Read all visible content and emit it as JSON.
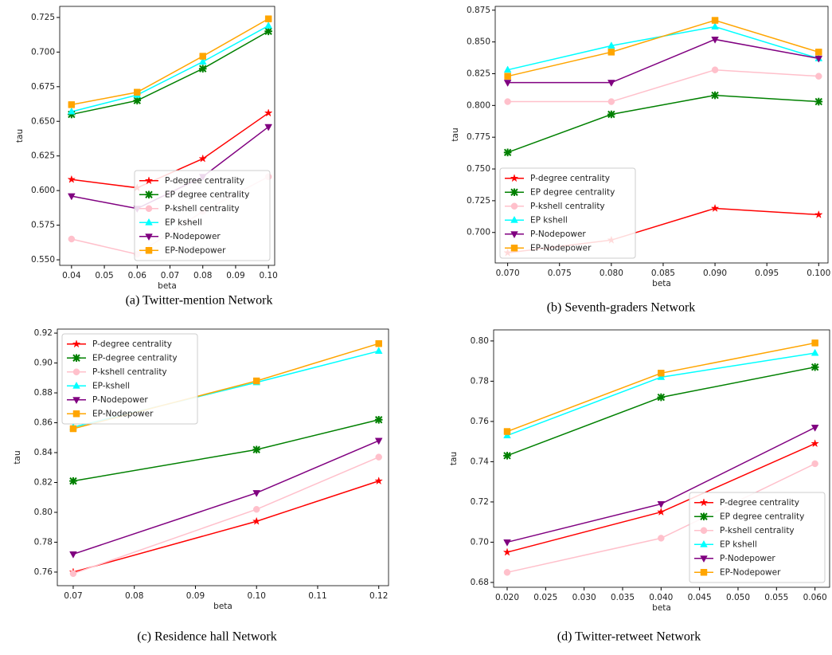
{
  "chart_data": [
    {
      "type": "line",
      "caption": "(a) Twitter-mention Network",
      "xlabel": "beta",
      "ylabel": "tau",
      "x": [
        0.04,
        0.06,
        0.08,
        0.1
      ],
      "xlim": [
        0.0364,
        0.1019
      ],
      "ylim": [
        0.546,
        0.733
      ],
      "xticks": [
        0.04,
        0.05,
        0.06,
        0.07,
        0.08,
        0.09,
        {
          "value": 0.1,
          "label": "0.10"
        }
      ],
      "yticks": [
        {
          "value": 0.55,
          "label": "0.550"
        },
        0.575,
        {
          "value": 0.6,
          "label": "0.600"
        },
        0.625,
        {
          "value": 0.65,
          "label": "0.650"
        },
        0.675,
        {
          "value": 0.7,
          "label": "0.700"
        },
        0.725
      ],
      "legend": "lower right",
      "series": [
        {
          "name": "P-degree centrality",
          "color": "#ff0000",
          "marker": "star",
          "values": [
            0.608,
            0.602,
            0.623,
            0.656
          ]
        },
        {
          "name": "EP degree centrality",
          "color": "#008000",
          "marker": "x",
          "values": [
            0.655,
            0.665,
            0.688,
            0.715
          ]
        },
        {
          "name": "P-kshell centrality",
          "color": "#ffc0cb",
          "marker": "circle",
          "values": [
            0.565,
            0.554,
            0.585,
            0.61
          ]
        },
        {
          "name": "EP kshell",
          "color": "#00ffff",
          "marker": "triangle-up",
          "values": [
            0.657,
            0.669,
            0.693,
            0.719
          ]
        },
        {
          "name": "P-Nodepower",
          "color": "#800080",
          "marker": "triangle-down",
          "values": [
            0.596,
            0.587,
            0.61,
            0.646
          ]
        },
        {
          "name": "EP-Nodepower",
          "color": "#ffa500",
          "marker": "square",
          "values": [
            0.662,
            0.671,
            0.697,
            0.724
          ]
        }
      ]
    },
    {
      "type": "line",
      "caption": "(b) Seventh-graders Network",
      "xlabel": "beta",
      "ylabel": "tau",
      "x": [
        0.07,
        0.08,
        0.09,
        0.1
      ],
      "xlim": [
        0.0688,
        0.1009
      ],
      "ylim": [
        0.676,
        0.878
      ],
      "xticks": [
        {
          "value": 0.07,
          "label": "0.070"
        },
        0.075,
        {
          "value": 0.08,
          "label": "0.080"
        },
        0.085,
        {
          "value": 0.09,
          "label": "0.090"
        },
        0.095,
        {
          "value": 0.1,
          "label": "0.100"
        }
      ],
      "yticks": [
        {
          "value": 0.7,
          "label": "0.700"
        },
        0.725,
        {
          "value": 0.75,
          "label": "0.750"
        },
        0.775,
        {
          "value": 0.8,
          "label": "0.800"
        },
        0.825,
        {
          "value": 0.85,
          "label": "0.850"
        },
        0.875
      ],
      "legend": "lower left",
      "series": [
        {
          "name": "P-degree centrality",
          "color": "#ff0000",
          "marker": "star",
          "values": [
            0.684,
            0.694,
            0.719,
            0.714
          ]
        },
        {
          "name": "EP degree centrality",
          "color": "#008000",
          "marker": "x",
          "values": [
            0.763,
            0.793,
            0.808,
            0.803
          ]
        },
        {
          "name": "P-kshell centrality",
          "color": "#ffc0cb",
          "marker": "circle",
          "values": [
            0.803,
            0.803,
            0.828,
            0.823
          ]
        },
        {
          "name": "EP kshell",
          "color": "#00ffff",
          "marker": "triangle-up",
          "values": [
            0.828,
            0.847,
            0.862,
            0.837
          ]
        },
        {
          "name": "P-Nodepower",
          "color": "#800080",
          "marker": "triangle-down",
          "values": [
            0.818,
            0.818,
            0.852,
            0.837
          ]
        },
        {
          "name": "EP-Nodepower",
          "color": "#ffa500",
          "marker": "square",
          "values": [
            0.823,
            0.842,
            0.867,
            0.842
          ]
        }
      ]
    },
    {
      "type": "line",
      "caption": "(c) Residence hall Network",
      "xlabel": "beta",
      "ylabel": "tau",
      "x": [
        0.07,
        0.1,
        0.12
      ],
      "xlim": [
        0.0674,
        0.1216
      ],
      "ylim": [
        0.7509,
        0.9227
      ],
      "xticks": [
        0.07,
        0.08,
        0.09,
        {
          "value": 0.1,
          "label": "0.10"
        },
        0.11,
        0.12
      ],
      "yticks": [
        0.76,
        0.78,
        {
          "value": 0.8,
          "label": "0.80"
        },
        0.82,
        0.84,
        0.86,
        0.88,
        {
          "value": 0.9,
          "label": "0.90"
        },
        0.92
      ],
      "legend": "upper left",
      "series": [
        {
          "name": "P-degree centrality",
          "color": "#ff0000",
          "marker": "star",
          "values": [
            0.76,
            0.794,
            0.821
          ]
        },
        {
          "name": "EP-degree centrality",
          "color": "#008000",
          "marker": "x",
          "values": [
            0.821,
            0.842,
            0.862
          ]
        },
        {
          "name": "P-kshell centrality",
          "color": "#ffc0cb",
          "marker": "circle",
          "values": [
            0.759,
            0.802,
            0.837
          ]
        },
        {
          "name": "EP-kshell",
          "color": "#00ffff",
          "marker": "triangle-up",
          "values": [
            0.857,
            0.887,
            0.908
          ]
        },
        {
          "name": "P-Nodepower",
          "color": "#800080",
          "marker": "triangle-down",
          "values": [
            0.772,
            0.813,
            0.848
          ]
        },
        {
          "name": "EP-Nodepower",
          "color": "#ffa500",
          "marker": "square",
          "values": [
            0.856,
            0.888,
            0.913
          ]
        }
      ]
    },
    {
      "type": "line",
      "caption": "(d) Twitter-retweet Network",
      "xlabel": "beta",
      "ylabel": "tau",
      "x": [
        0.02,
        0.04,
        0.06
      ],
      "xlim": [
        0.01824,
        0.0619
      ],
      "ylim": [
        0.6776,
        0.8055
      ],
      "xticks": [
        {
          "value": 0.02,
          "label": "0.020"
        },
        0.025,
        {
          "value": 0.03,
          "label": "0.030"
        },
        0.035,
        {
          "value": 0.04,
          "label": "0.040"
        },
        0.045,
        {
          "value": 0.05,
          "label": "0.050"
        },
        0.055,
        {
          "value": 0.06,
          "label": "0.060"
        }
      ],
      "yticks": [
        0.68,
        {
          "value": 0.7,
          "label": "0.70"
        },
        0.72,
        0.74,
        0.76,
        0.78,
        {
          "value": 0.8,
          "label": "0.80"
        }
      ],
      "legend": "lower right",
      "series": [
        {
          "name": "P-degree centrality",
          "color": "#ff0000",
          "marker": "star",
          "values": [
            0.695,
            0.715,
            0.749
          ]
        },
        {
          "name": "EP degree centrality",
          "color": "#008000",
          "marker": "x",
          "values": [
            0.743,
            0.772,
            0.787
          ]
        },
        {
          "name": "P-kshell centrality",
          "color": "#ffc0cb",
          "marker": "circle",
          "values": [
            0.685,
            0.702,
            0.739
          ]
        },
        {
          "name": "EP kshell",
          "color": "#00ffff",
          "marker": "triangle-up",
          "values": [
            0.753,
            0.782,
            0.794
          ]
        },
        {
          "name": "P-Nodepower",
          "color": "#800080",
          "marker": "triangle-down",
          "values": [
            0.7,
            0.719,
            0.757
          ]
        },
        {
          "name": "EP-Nodepower",
          "color": "#ffa500",
          "marker": "square",
          "values": [
            0.755,
            0.784,
            0.799
          ]
        }
      ]
    }
  ]
}
